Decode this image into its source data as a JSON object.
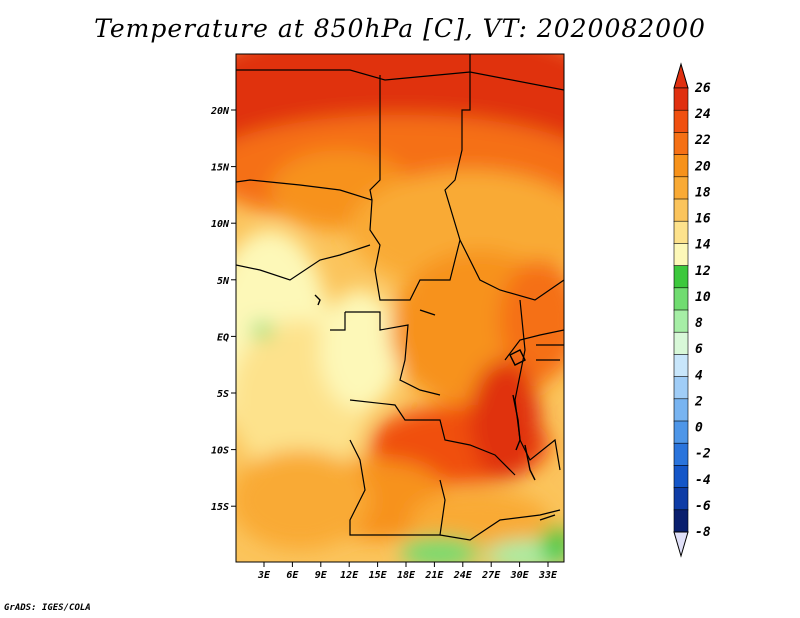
{
  "title": "Temperature at 850hPa [C], VT: 2020082000",
  "credit": "GrADS: IGES/COLA",
  "map": {
    "lat_labels": [
      "20N",
      "15N",
      "10N",
      "5N",
      "EQ",
      "5S",
      "10S",
      "15S"
    ],
    "lon_labels": [
      "3E",
      "6E",
      "9E",
      "12E",
      "15E",
      "18E",
      "21E",
      "24E",
      "27E",
      "30E",
      "33E"
    ]
  },
  "colorbar": {
    "labels": [
      "26",
      "24",
      "22",
      "20",
      "18",
      "16",
      "14",
      "12",
      "10",
      "8",
      "6",
      "4",
      "2",
      "0",
      "-2",
      "-4",
      "-6",
      "-8"
    ],
    "colors": [
      "#e03010",
      "#f05010",
      "#f57015",
      "#f7921a",
      "#f9aa35",
      "#fbc45c",
      "#fde28c",
      "#fdf8b8",
      "#3cc83c",
      "#70dc70",
      "#a6eea6",
      "#d8f8d8",
      "#c8e6fb",
      "#a0cdf7",
      "#78b4f1",
      "#4e96e8",
      "#2a74dc",
      "#1456c8",
      "#0e3ca6",
      "#0a1f6e"
    ],
    "top_arrow_color": "#e03010",
    "bottom_arrow_color": "#e0e0f8"
  }
}
